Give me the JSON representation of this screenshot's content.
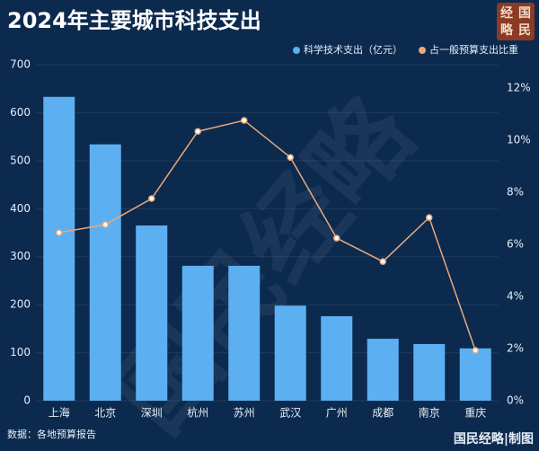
{
  "chart_data": {
    "type": "bar_line",
    "title": "2024年主要城市科技支出",
    "categories": [
      "上海",
      "北京",
      "深圳",
      "杭州",
      "苏州",
      "武汉",
      "广州",
      "成都",
      "南京",
      "重庆"
    ],
    "series": [
      {
        "name": "科学技术支出（亿元）",
        "color": "#5cb0f2",
        "type": "bar",
        "values": [
          633,
          534,
          365,
          281,
          281,
          198,
          176,
          129,
          118,
          109
        ]
      },
      {
        "name": "占一般预算支出比重",
        "color": "#e8a97c",
        "type": "line",
        "axis": "y2",
        "values": [
          6.45,
          6.76,
          7.76,
          10.34,
          10.76,
          9.34,
          6.24,
          5.34,
          7.03,
          1.93
        ]
      }
    ],
    "ylim": [
      0,
      700
    ],
    "yticks": [
      0,
      100,
      200,
      300,
      400,
      500,
      600,
      700
    ],
    "y2lim": [
      0,
      12.9
    ],
    "y2ticks": [
      {
        "value": 0,
        "label": "0%"
      },
      {
        "value": 2,
        "label": "2%"
      },
      {
        "value": 4,
        "label": "4%"
      },
      {
        "value": 6,
        "label": "6%"
      },
      {
        "value": 8,
        "label": "8%"
      },
      {
        "value": 10,
        "label": "10%"
      },
      {
        "value": 12,
        "label": "12%"
      }
    ],
    "grid": true,
    "source": "数据：各地预算报告",
    "footer": "国民经略|制图",
    "logo": [
      "国",
      "民",
      "经",
      "略"
    ],
    "watermark": "国民经略"
  }
}
